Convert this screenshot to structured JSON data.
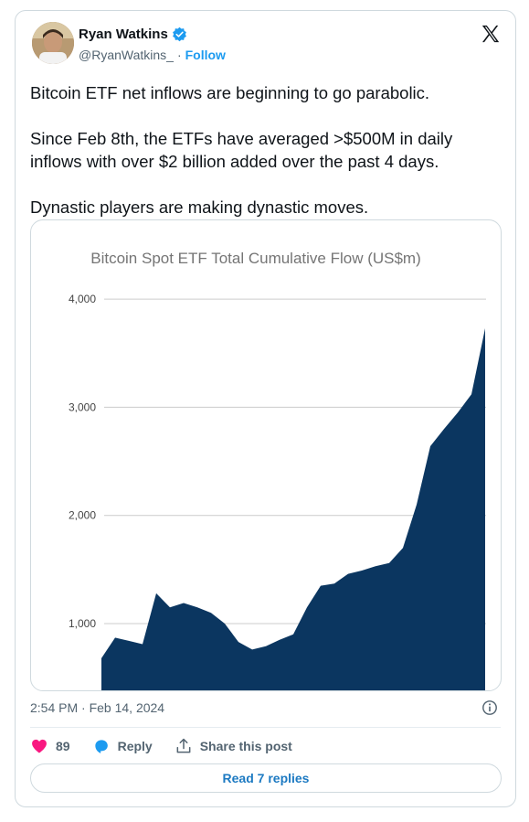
{
  "tweet": {
    "author": {
      "display_name": "Ryan Watkins",
      "handle": "@RyanWatkins_",
      "follow_label": "Follow",
      "separator": "·"
    },
    "text_paragraphs": [
      "Bitcoin ETF net inflows are beginning to go parabolic.",
      "Since Feb 8th, the ETFs have averaged >$500M in daily inflows with over $2 billion added over the past 4 days.",
      "Dynastic players are making dynastic moves."
    ],
    "timestamp": "2:54 PM · Feb 14, 2024",
    "likes": "89",
    "reply_label": "Reply",
    "share_label": "Share this post",
    "read_replies_label": "Read 7 replies"
  },
  "colors": {
    "accent": "#1d9bf0",
    "heart": "#f91880",
    "chart_fill": "#0b3660",
    "text": "#0f1419",
    "muted": "#536471"
  },
  "icons": [
    "verified-badge-icon",
    "x-logo-icon",
    "info-icon",
    "heart-icon",
    "reply-bubble-icon",
    "share-icon"
  ],
  "chart_data": {
    "type": "area",
    "title": "Bitcoin Spot ETF Total Cumulative Flow (US$m)",
    "xlabel": "",
    "ylabel": "",
    "y_ticks": [
      "4,000",
      "3,000",
      "2,000",
      "1,000"
    ],
    "y_tick_values": [
      4000,
      3000,
      2000,
      1000
    ],
    "ylim": [
      100,
      4400
    ],
    "grid": true,
    "series": [
      {
        "values": [
          680,
          870,
          840,
          810,
          1280,
          1150,
          1190,
          1150,
          1100,
          1000,
          830,
          760,
          790,
          850,
          900,
          1150,
          1350,
          1370,
          1460,
          1490,
          1530,
          1560,
          1700,
          2100,
          2640,
          2800,
          2950,
          3120,
          3730
        ]
      }
    ]
  }
}
